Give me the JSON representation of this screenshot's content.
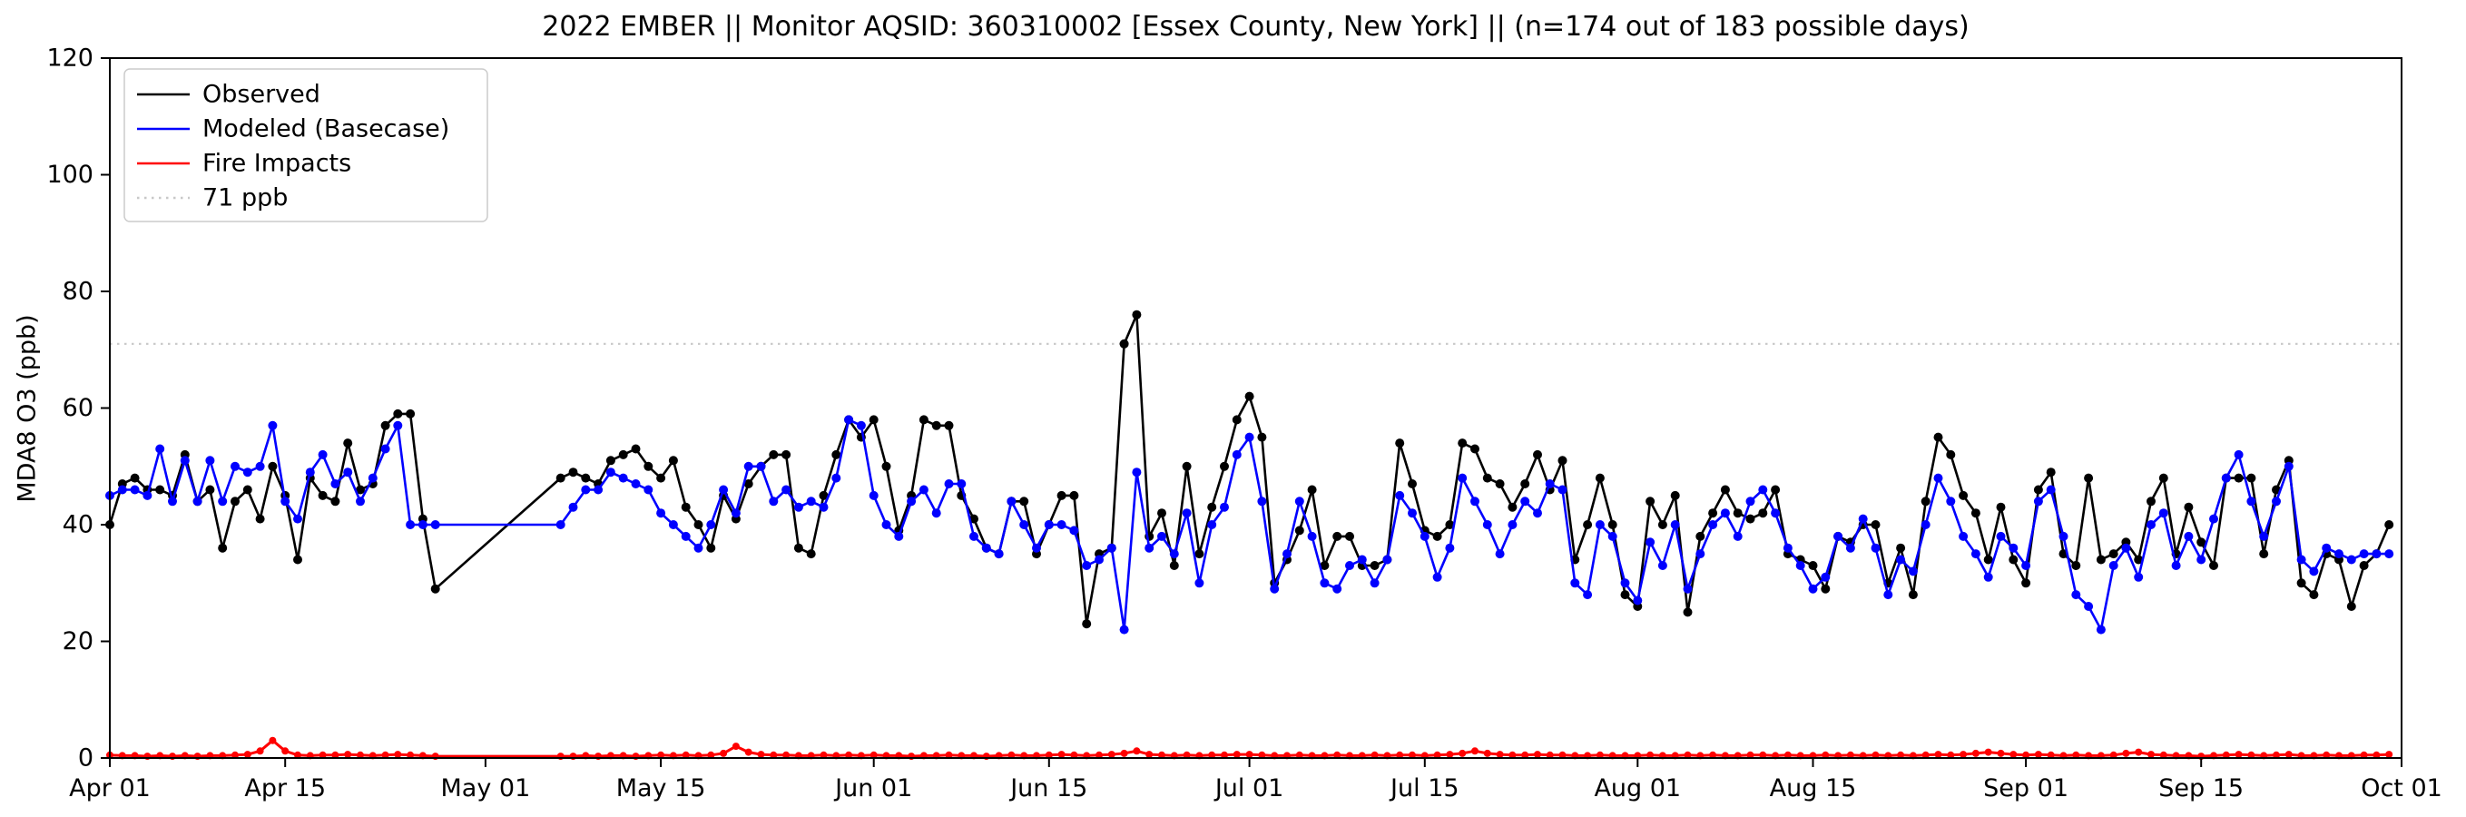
{
  "chart_data": {
    "type": "line",
    "title": "2022 EMBER || Monitor AQSID: 360310002 [Essex County, New York] || (n=174 out of 183 possible days)",
    "ylabel": "MDA8 O3 (ppb)",
    "xlabel": "",
    "ylim": [
      0,
      120
    ],
    "yticks": [
      0,
      20,
      40,
      60,
      80,
      100,
      120
    ],
    "x_domain_days": [
      0,
      183
    ],
    "start_date": "2022-04-01",
    "xticks": [
      {
        "label": "Apr 01",
        "day": 0
      },
      {
        "label": "Apr 15",
        "day": 14
      },
      {
        "label": "May 01",
        "day": 30
      },
      {
        "label": "May 15",
        "day": 44
      },
      {
        "label": "Jun 01",
        "day": 61
      },
      {
        "label": "Jun 15",
        "day": 75
      },
      {
        "label": "Jul 01",
        "day": 91
      },
      {
        "label": "Jul 15",
        "day": 105
      },
      {
        "label": "Aug 01",
        "day": 122
      },
      {
        "label": "Aug 15",
        "day": 136
      },
      {
        "label": "Sep 01",
        "day": 153
      },
      {
        "label": "Sep 15",
        "day": 167
      },
      {
        "label": "Oct 01",
        "day": 183
      }
    ],
    "threshold": {
      "value": 71,
      "label": "71 ppb",
      "color": "#c8c8c8",
      "style": "dotted"
    },
    "legend_position": "upper left",
    "grid": false,
    "n_days_observed": 174,
    "n_days_possible": 183,
    "series": [
      {
        "name": "Observed",
        "color": "#000000",
        "marker": "circle",
        "values": [
          40,
          47,
          48,
          46,
          46,
          45,
          52,
          44,
          46,
          36,
          44,
          46,
          41,
          50,
          45,
          34,
          48,
          45,
          44,
          54,
          46,
          47,
          57,
          59,
          59,
          41,
          29,
          null,
          null,
          null,
          null,
          null,
          null,
          null,
          null,
          null,
          48,
          49,
          48,
          47,
          51,
          52,
          53,
          50,
          48,
          51,
          43,
          40,
          36,
          45,
          41,
          47,
          50,
          52,
          52,
          36,
          35,
          45,
          52,
          58,
          55,
          58,
          50,
          39,
          45,
          58,
          57,
          57,
          45,
          41,
          36,
          35,
          44,
          44,
          35,
          40,
          45,
          45,
          23,
          35,
          36,
          71,
          76,
          38,
          42,
          33,
          50,
          35,
          43,
          50,
          58,
          62,
          55,
          30,
          34,
          39,
          46,
          33,
          38,
          38,
          33,
          33,
          34,
          54,
          47,
          39,
          38,
          40,
          54,
          53,
          48,
          47,
          43,
          47,
          52,
          46,
          51,
          34,
          40,
          48,
          40,
          28,
          26,
          44,
          40,
          45,
          25,
          38,
          42,
          46,
          42,
          41,
          42,
          46,
          35,
          34,
          33,
          29,
          38,
          37,
          40,
          40,
          30,
          36,
          28,
          44,
          55,
          52,
          45,
          42,
          34,
          43,
          34,
          30,
          46,
          49,
          35,
          33,
          48,
          34,
          35,
          37,
          34,
          44,
          48,
          35,
          43,
          37,
          33,
          48,
          48,
          48,
          35,
          46,
          51,
          30,
          28,
          35,
          34,
          26,
          33,
          35,
          40
        ]
      },
      {
        "name": "Modeled (Basecase)",
        "color": "#0000ff",
        "marker": "circle",
        "values": [
          45,
          46,
          46,
          45,
          53,
          44,
          51,
          44,
          51,
          44,
          50,
          49,
          50,
          57,
          44,
          41,
          49,
          52,
          47,
          49,
          44,
          48,
          53,
          57,
          40,
          40,
          40,
          null,
          null,
          null,
          null,
          null,
          null,
          null,
          null,
          null,
          40,
          43,
          46,
          46,
          49,
          48,
          47,
          46,
          42,
          40,
          38,
          36,
          40,
          46,
          42,
          50,
          50,
          44,
          46,
          43,
          44,
          43,
          48,
          58,
          57,
          45,
          40,
          38,
          44,
          46,
          42,
          47,
          47,
          38,
          36,
          35,
          44,
          40,
          36,
          40,
          40,
          39,
          33,
          34,
          36,
          22,
          49,
          36,
          38,
          35,
          42,
          30,
          40,
          43,
          52,
          55,
          44,
          29,
          35,
          44,
          38,
          30,
          29,
          33,
          34,
          30,
          34,
          45,
          42,
          38,
          31,
          36,
          48,
          44,
          40,
          35,
          40,
          44,
          42,
          47,
          46,
          30,
          28,
          40,
          38,
          30,
          27,
          37,
          33,
          40,
          29,
          35,
          40,
          42,
          38,
          44,
          46,
          42,
          36,
          33,
          29,
          31,
          38,
          36,
          41,
          36,
          28,
          34,
          32,
          40,
          48,
          44,
          38,
          35,
          31,
          38,
          36,
          33,
          44,
          46,
          38,
          28,
          26,
          22,
          33,
          36,
          31,
          40,
          42,
          33,
          38,
          34,
          41,
          48,
          52,
          44,
          38,
          44,
          50,
          34,
          32,
          36,
          35,
          34,
          35,
          35,
          35
        ]
      },
      {
        "name": "Fire Impacts",
        "color": "#ff0000",
        "marker": "circle",
        "values": [
          0.5,
          0.4,
          0.4,
          0.3,
          0.4,
          0.3,
          0.4,
          0.3,
          0.4,
          0.4,
          0.5,
          0.6,
          1.2,
          3.0,
          1.2,
          0.5,
          0.4,
          0.5,
          0.5,
          0.6,
          0.5,
          0.4,
          0.5,
          0.6,
          0.5,
          0.4,
          0.3,
          null,
          null,
          null,
          null,
          null,
          null,
          null,
          null,
          null,
          0.3,
          0.3,
          0.4,
          0.3,
          0.4,
          0.4,
          0.3,
          0.4,
          0.5,
          0.4,
          0.5,
          0.4,
          0.5,
          0.8,
          2.0,
          1.0,
          0.6,
          0.5,
          0.5,
          0.4,
          0.4,
          0.5,
          0.4,
          0.5,
          0.4,
          0.5,
          0.4,
          0.4,
          0.3,
          0.4,
          0.4,
          0.5,
          0.4,
          0.4,
          0.3,
          0.4,
          0.5,
          0.4,
          0.4,
          0.5,
          0.6,
          0.5,
          0.4,
          0.5,
          0.6,
          0.8,
          1.2,
          0.6,
          0.5,
          0.4,
          0.5,
          0.4,
          0.5,
          0.5,
          0.6,
          0.6,
          0.5,
          0.4,
          0.4,
          0.5,
          0.4,
          0.4,
          0.5,
          0.4,
          0.4,
          0.5,
          0.4,
          0.5,
          0.5,
          0.4,
          0.5,
          0.6,
          0.8,
          1.2,
          0.8,
          0.6,
          0.5,
          0.5,
          0.6,
          0.5,
          0.5,
          0.4,
          0.4,
          0.5,
          0.4,
          0.4,
          0.4,
          0.5,
          0.4,
          0.4,
          0.5,
          0.4,
          0.5,
          0.4,
          0.4,
          0.5,
          0.5,
          0.4,
          0.5,
          0.4,
          0.4,
          0.5,
          0.4,
          0.5,
          0.4,
          0.5,
          0.4,
          0.5,
          0.4,
          0.5,
          0.6,
          0.5,
          0.6,
          0.8,
          1.0,
          0.8,
          0.6,
          0.5,
          0.6,
          0.5,
          0.4,
          0.5,
          0.4,
          0.4,
          0.5,
          0.8,
          1.0,
          0.6,
          0.5,
          0.4,
          0.4,
          0.3,
          0.4,
          0.5,
          0.6,
          0.5,
          0.4,
          0.5,
          0.6,
          0.4,
          0.4,
          0.5,
          0.4,
          0.4,
          0.5,
          0.5,
          0.6
        ]
      }
    ]
  }
}
